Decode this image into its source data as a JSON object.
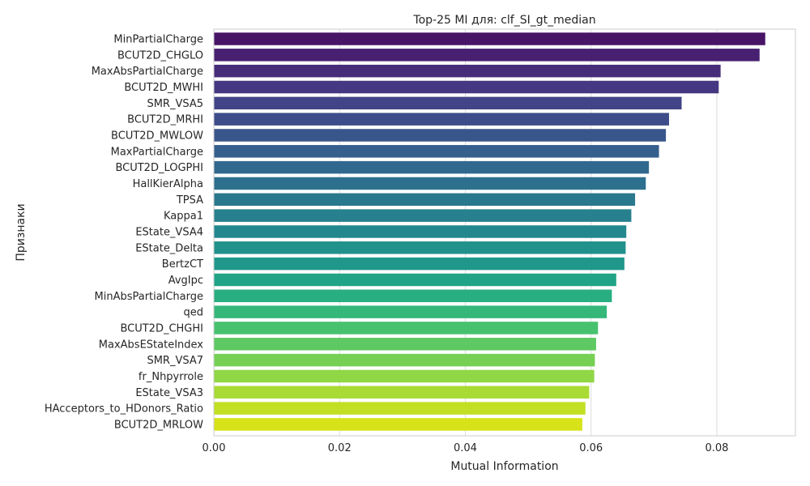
{
  "chart_data": {
    "type": "bar",
    "orientation": "horizontal",
    "title": "Top-25 MI для: clf_SI_gt_median",
    "xlabel": "Mutual Information",
    "ylabel": "Признаки",
    "xlim": [
      0.0,
      0.0925
    ],
    "xticks": [
      "0.00",
      "0.02",
      "0.04",
      "0.06",
      "0.08"
    ],
    "xtick_values": [
      0.0,
      0.02,
      0.04,
      0.06,
      0.08
    ],
    "grid": true,
    "colormap": "viridis",
    "categories": [
      "MinPartialCharge",
      "BCUT2D_CHGLO",
      "MaxAbsPartialCharge",
      "BCUT2D_MWHI",
      "SMR_VSA5",
      "BCUT2D_MRHI",
      "BCUT2D_MWLOW",
      "MaxPartialCharge",
      "BCUT2D_LOGPHI",
      "HallKierAlpha",
      "TPSA",
      "Kappa1",
      "EState_VSA4",
      "EState_Delta",
      "BertzCT",
      "AvgIpc",
      "MinAbsPartialCharge",
      "qed",
      "BCUT2D_CHGHI",
      "MaxAbsEStateIndex",
      "SMR_VSA7",
      "fr_Nhpyrrole",
      "EState_VSA3",
      "HAcceptors_to_HDonors_Ratio",
      "BCUT2D_MRLOW"
    ],
    "values": [
      0.0877,
      0.0868,
      0.0806,
      0.0803,
      0.0744,
      0.0724,
      0.0719,
      0.0708,
      0.0692,
      0.0687,
      0.067,
      0.0664,
      0.0656,
      0.0655,
      0.0653,
      0.064,
      0.0633,
      0.0625,
      0.0611,
      0.0608,
      0.0606,
      0.0605,
      0.0597,
      0.0591,
      0.0586
    ],
    "colors": [
      "#481567",
      "#482071",
      "#472c7a",
      "#453781",
      "#414487",
      "#3d4d8a",
      "#39568c",
      "#355f8d",
      "#31688e",
      "#2d708e",
      "#2a788e",
      "#27808e",
      "#23888e",
      "#21918c",
      "#1f988b",
      "#20a386",
      "#28ae80",
      "#35b779",
      "#48c16e",
      "#5ec962",
      "#75d054",
      "#8fd744",
      "#a8db34",
      "#c2df23",
      "#d7e219"
    ]
  }
}
